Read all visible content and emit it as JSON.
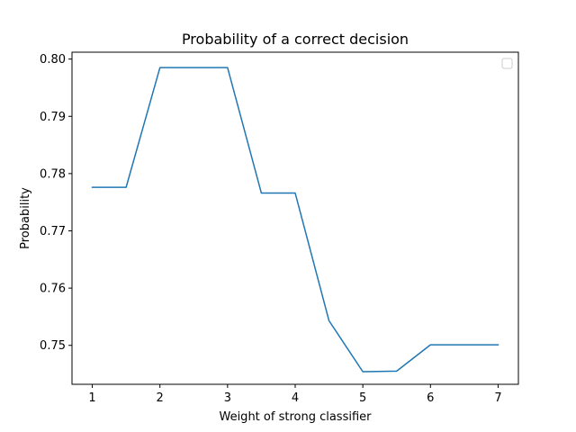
{
  "chart_data": {
    "type": "line",
    "title": "Probability of a correct decision",
    "xlabel": "Weight of strong classifier",
    "ylabel": "Probability",
    "xlim": [
      0.7,
      7.3
    ],
    "ylim": [
      0.7432,
      0.8012
    ],
    "x_ticks": [
      1,
      2,
      3,
      4,
      5,
      6,
      7
    ],
    "x_tick_labels": [
      "1",
      "2",
      "3",
      "4",
      "5",
      "6",
      "7"
    ],
    "y_ticks": [
      0.75,
      0.76,
      0.77,
      0.78,
      0.79,
      0.8
    ],
    "y_tick_labels": [
      "0.75",
      "0.76",
      "0.77",
      "0.78",
      "0.79",
      "0.80"
    ],
    "grid": false,
    "legend": {
      "placement": "upper-right",
      "entries": []
    },
    "series": [
      {
        "color": "#1f77b4",
        "x": [
          1,
          1.5,
          2,
          2.5,
          3,
          3.5,
          4,
          4.5,
          5,
          5.5,
          6,
          6.5,
          7
        ],
        "y": [
          0.7776,
          0.7776,
          0.7985,
          0.7985,
          0.7985,
          0.7766,
          0.7766,
          0.7543,
          0.7454,
          0.7455,
          0.7501,
          0.7501,
          0.7501
        ]
      }
    ]
  }
}
